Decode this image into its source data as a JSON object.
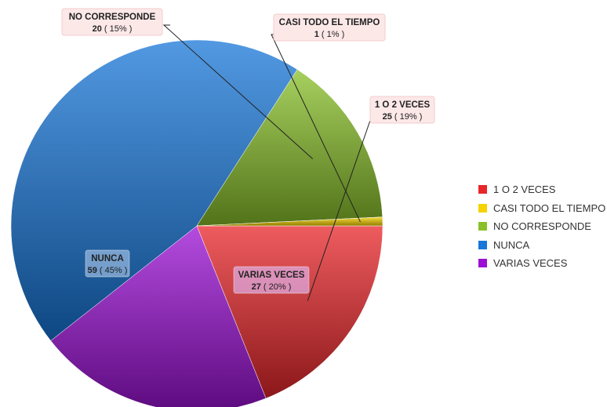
{
  "chart_data": {
    "type": "pie",
    "slices": [
      {
        "label": "1 O 2 VECES",
        "value": 25,
        "percent": "19%",
        "color": "#e8262a"
      },
      {
        "label": "VARIAS VECES",
        "value": 27,
        "percent": "20%",
        "color": "#9b10d4"
      },
      {
        "label": "NUNCA",
        "value": 59,
        "percent": "45%",
        "color": "#1877d8"
      },
      {
        "label": "NO CORRESPONDE",
        "value": 20,
        "percent": "15%",
        "color": "#89c02a"
      },
      {
        "label": "CASI TODO EL TIEMPO",
        "value": 1,
        "percent": "1%",
        "color": "#f5d200"
      }
    ],
    "legend_order": [
      "1 O 2 VECES",
      "CASI TODO EL TIEMPO",
      "NO CORRESPONDE",
      "NUNCA",
      "VARIAS VECES"
    ],
    "legend_position": "right",
    "data_labels": [
      {
        "name": "NO CORRESPONDE",
        "count": "20",
        "pct": "( 15% )"
      },
      {
        "name": "CASI TODO EL TIEMPO",
        "count": "1",
        "pct": "( 1% )"
      },
      {
        "name": "1 O 2 VECES",
        "count": "25",
        "pct": "( 19% )"
      },
      {
        "name": "NUNCA",
        "count": "59",
        "pct": "( 45% )"
      },
      {
        "name": "VARIAS VECES",
        "count": "27",
        "pct": "( 20% )"
      }
    ]
  }
}
